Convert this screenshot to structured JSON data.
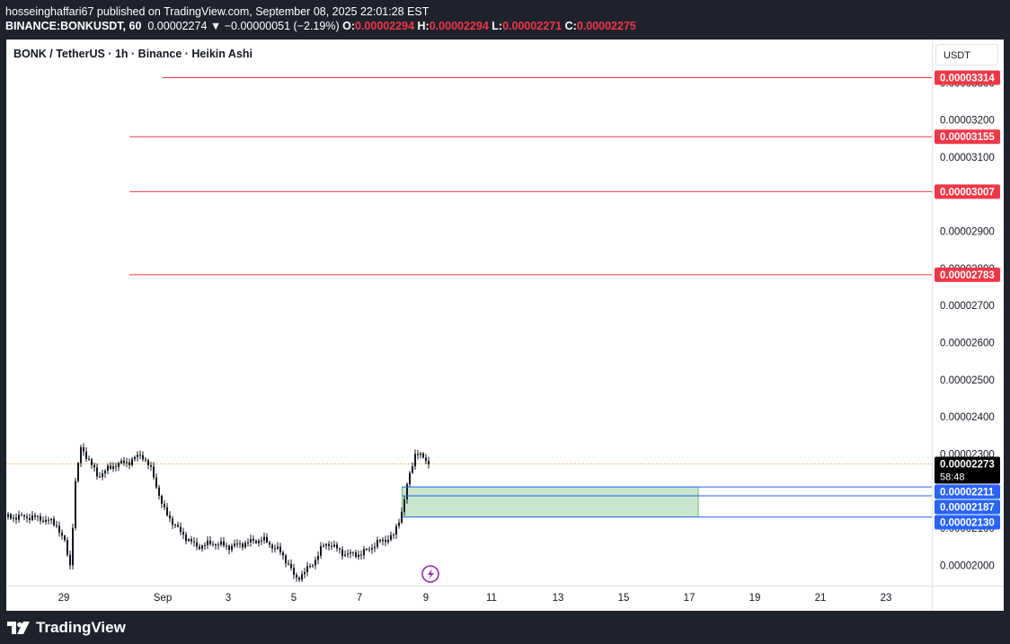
{
  "header": {
    "line1": "hosseinghaffari67 published on TradingView.com, September 08, 2025 22:01:28 EST",
    "symbol": "BINANCE:BONKUSDT, 60",
    "price": "0.00002274",
    "change": "▼ −0.00000051 (−2.19%)",
    "o_label": "O:",
    "o_value": "0.00002294",
    "h_label": "H:",
    "h_value": "0.00002294",
    "l_label": "L:",
    "l_value": "0.00002271",
    "c_label": "C:",
    "c_value": "0.00002275"
  },
  "chart_title": "BONK / TetherUS · 1h · Binance · Heikin Ashi",
  "currency_button": "USDT",
  "countdown": "58:48",
  "logo_text": "TradingView",
  "colors": {
    "up": "#131722",
    "down": "#131722",
    "resistance": "#f23645",
    "zone_fill": "#c8e6c9",
    "zone_border": "#2962ff",
    "current_price_line": "#d4a017"
  },
  "chart_data": {
    "type": "candlestick",
    "style": "Heikin Ashi",
    "symbol": "BONK / TetherUS",
    "interval": "1h",
    "exchange": "Binance",
    "y_axis_unit": "USDT",
    "ylim": [
      1.945e-05,
      3.417e-05
    ],
    "y_ticks": [
      "0.00002000",
      "0.00002100",
      "0.00002200",
      "0.00002300",
      "0.00002400",
      "0.00002500",
      "0.00002600",
      "0.00002700",
      "0.00002800",
      "0.00002900",
      "0.00003000",
      "0.00003100",
      "0.00003200",
      "0.00003300"
    ],
    "x_ticks": [
      "29",
      "Sep",
      "3",
      "5",
      "7",
      "9",
      "11",
      "13",
      "15",
      "17",
      "19",
      "21",
      "23"
    ],
    "price_path": [
      [
        "Aug 28 00:00",
        2.13e-05
      ],
      [
        "Aug 28 12:00",
        2.12e-05
      ],
      [
        "Aug 28 18:00",
        2.11e-05
      ],
      [
        "Aug 29 00:00",
        2.06e-05
      ],
      [
        "Aug 29 04:00",
        2e-05
      ],
      [
        "Aug 29 08:00",
        2.23e-05
      ],
      [
        "Aug 29 12:00",
        2.32e-05
      ],
      [
        "Aug 30 00:00",
        2.24e-05
      ],
      [
        "Aug 30 12:00",
        2.27e-05
      ],
      [
        "Aug 31 00:00",
        2.28e-05
      ],
      [
        "Aug 31 08:00",
        2.3e-05
      ],
      [
        "Aug 31 16:00",
        2.25e-05
      ],
      [
        "Sep 1 00:00",
        2.15e-05
      ],
      [
        "Sep 1 12:00",
        2.09e-05
      ],
      [
        "Sep 2 00:00",
        2.05e-05
      ],
      [
        "Sep 2 12:00",
        2.06e-05
      ],
      [
        "Sep 3 00:00",
        2.05e-05
      ],
      [
        "Sep 3 12:00",
        2.06e-05
      ],
      [
        "Sep 4 00:00",
        2.07e-05
      ],
      [
        "Sep 4 12:00",
        2.04e-05
      ],
      [
        "Sep 4 20:00",
        2e-05
      ],
      [
        "Sep 5 00:00",
        1.96e-05
      ],
      [
        "Sep 5 12:00",
        2e-05
      ],
      [
        "Sep 5 20:00",
        2.05e-05
      ],
      [
        "Sep 6 00:00",
        2.06e-05
      ],
      [
        "Sep 6 12:00",
        2.03e-05
      ],
      [
        "Sep 7 00:00",
        2.03e-05
      ],
      [
        "Sep 7 12:00",
        2.06e-05
      ],
      [
        "Sep 8 00:00",
        2.08e-05
      ],
      [
        "Sep 8 06:00",
        2.15e-05
      ],
      [
        "Sep 8 10:00",
        2.22e-05
      ],
      [
        "Sep 8 16:00",
        2.31e-05
      ],
      [
        "Sep 8 20:00",
        2.29e-05
      ],
      [
        "Sep 9 02:00",
        2.275e-05
      ]
    ],
    "current_price": {
      "value": 2.273e-05,
      "label": "0.00002273"
    },
    "resistance_levels": [
      {
        "value": 3.314e-05,
        "label": "0.00003314",
        "from": "Sep 1"
      },
      {
        "value": 3.155e-05,
        "label": "0.00003155",
        "from": "Aug 31"
      },
      {
        "value": 3.007e-05,
        "label": "0.00003007",
        "from": "Aug 31"
      },
      {
        "value": 2.783e-05,
        "label": "0.00002783",
        "from": "Aug 31"
      }
    ],
    "zone_levels": [
      {
        "value": 2.211e-05,
        "label": "0.00002211"
      },
      {
        "value": 2.187e-05,
        "label": "0.00002187"
      },
      {
        "value": 2.13e-05,
        "label": "0.00002130"
      }
    ],
    "zone": {
      "top": 2.211e-05,
      "bottom": 2.13e-05,
      "from": "Sep 8",
      "to": "Sep 17"
    },
    "annotations": [
      {
        "type": "lightning-icon",
        "at": "Sep 9"
      }
    ]
  }
}
